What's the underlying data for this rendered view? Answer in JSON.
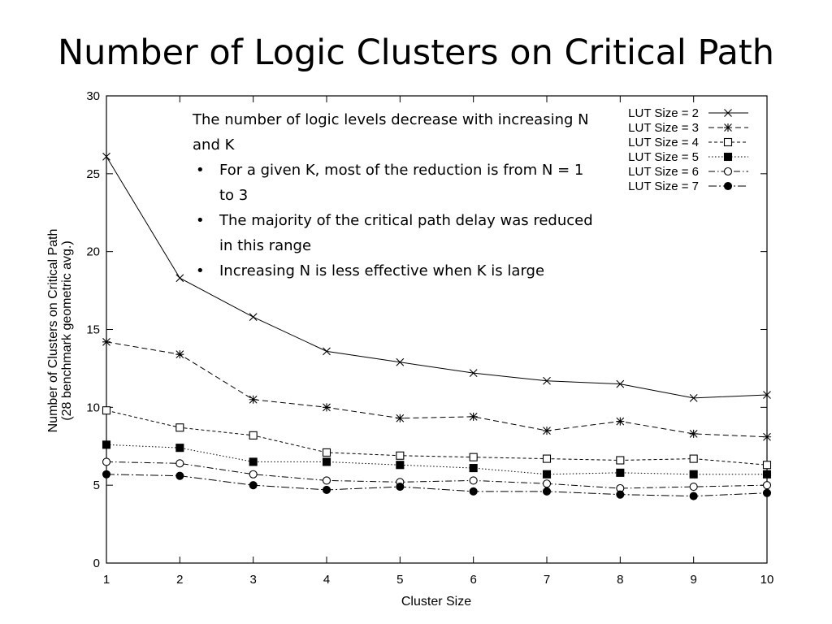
{
  "slide": {
    "title": "Number of Logic Clusters on Critical Path"
  },
  "annotation": {
    "intro": "The number of logic levels decrease with increasing N and K",
    "bullets": [
      "For a given K, most of the reduction is from N = 1 to 3",
      "The majority of the critical path delay was reduced in this range",
      "Increasing N is less effective when K is large"
    ]
  },
  "chart_data": {
    "type": "line",
    "title": "",
    "xlabel": "Cluster Size",
    "ylabel": "Number of Clusters on Critical Path",
    "ylabel2": "(28 benchmark geometric avg.)",
    "x": [
      1,
      2,
      3,
      4,
      5,
      6,
      7,
      8,
      9,
      10
    ],
    "xlim": [
      1,
      10
    ],
    "ylim": [
      0,
      30
    ],
    "yticks": [
      0,
      5,
      10,
      15,
      20,
      25,
      30
    ],
    "grid": false,
    "legend_position": "top-right",
    "series": [
      {
        "name": "LUT Size = 2",
        "marker": "x",
        "line": "solid",
        "values": [
          26.1,
          18.3,
          15.8,
          13.6,
          12.9,
          12.2,
          11.7,
          11.5,
          10.6,
          10.8
        ]
      },
      {
        "name": "LUT Size = 3",
        "marker": "star",
        "line": "dashed",
        "values": [
          14.2,
          13.4,
          10.5,
          10.0,
          9.3,
          9.4,
          8.5,
          9.1,
          8.3,
          8.1
        ]
      },
      {
        "name": "LUT Size = 4",
        "marker": "open-square",
        "line": "short-dashed",
        "values": [
          9.8,
          8.7,
          8.2,
          7.1,
          6.9,
          6.8,
          6.7,
          6.6,
          6.7,
          6.3
        ]
      },
      {
        "name": "LUT Size = 5",
        "marker": "filled-square",
        "line": "dotted",
        "values": [
          7.6,
          7.4,
          6.5,
          6.5,
          6.3,
          6.1,
          5.7,
          5.8,
          5.7,
          5.7
        ]
      },
      {
        "name": "LUT Size = 6",
        "marker": "open-circle",
        "line": "dash-dot",
        "values": [
          6.5,
          6.4,
          5.7,
          5.3,
          5.2,
          5.3,
          5.1,
          4.8,
          4.9,
          5.0
        ]
      },
      {
        "name": "LUT Size = 7",
        "marker": "filled-circle",
        "line": "dash-dot-long",
        "values": [
          5.7,
          5.6,
          5.0,
          4.7,
          4.9,
          4.6,
          4.6,
          4.4,
          4.3,
          4.5
        ]
      }
    ]
  }
}
